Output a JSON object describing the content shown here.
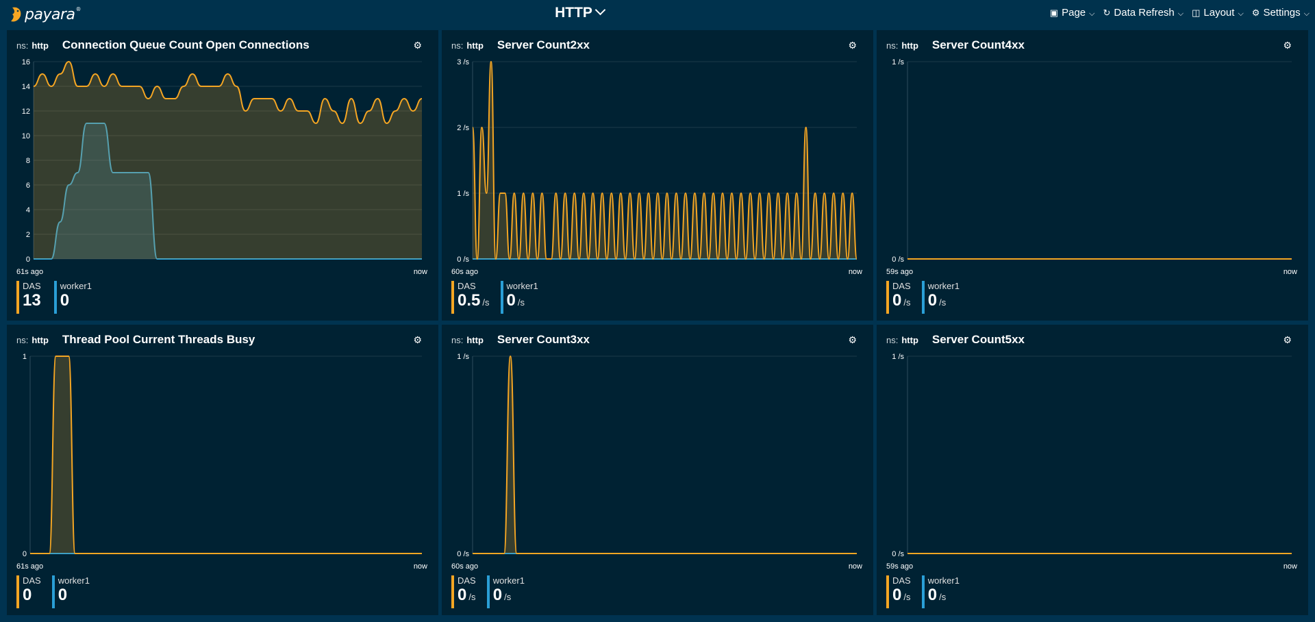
{
  "header": {
    "title": "HTTP",
    "logo_text": "payara",
    "menu": [
      {
        "icon": "page-icon",
        "glyph": "▣",
        "label": "Page"
      },
      {
        "icon": "refresh-icon",
        "glyph": "↻",
        "label": "Data Refresh"
      },
      {
        "icon": "layout-icon",
        "glyph": "◫",
        "label": "Layout"
      },
      {
        "icon": "gear-icon",
        "glyph": "⚙",
        "label": "Settings"
      }
    ]
  },
  "colors": {
    "das": "#f5a623",
    "worker1": "#2a9fd6"
  },
  "widgets": [
    {
      "ns_label": "ns:",
      "ns": "http",
      "title": "Connection Queue Count Open Connections",
      "x_start": "61s ago",
      "x_end": "now",
      "legend": [
        {
          "name": "DAS",
          "value": "13",
          "unit": ""
        },
        {
          "name": "worker1",
          "value": "0",
          "unit": ""
        }
      ]
    },
    {
      "ns_label": "ns:",
      "ns": "http",
      "title": "Server Count2xx",
      "x_start": "60s ago",
      "x_end": "now",
      "legend": [
        {
          "name": "DAS",
          "value": "0.5",
          "unit": "/s"
        },
        {
          "name": "worker1",
          "value": "0",
          "unit": "/s"
        }
      ]
    },
    {
      "ns_label": "ns:",
      "ns": "http",
      "title": "Server Count4xx",
      "x_start": "59s ago",
      "x_end": "now",
      "legend": [
        {
          "name": "DAS",
          "value": "0",
          "unit": "/s"
        },
        {
          "name": "worker1",
          "value": "0",
          "unit": "/s"
        }
      ]
    },
    {
      "ns_label": "ns:",
      "ns": "http",
      "title": "Thread Pool Current Threads Busy",
      "x_start": "61s ago",
      "x_end": "now",
      "legend": [
        {
          "name": "DAS",
          "value": "0",
          "unit": ""
        },
        {
          "name": "worker1",
          "value": "0",
          "unit": ""
        }
      ]
    },
    {
      "ns_label": "ns:",
      "ns": "http",
      "title": "Server Count3xx",
      "x_start": "60s ago",
      "x_end": "now",
      "legend": [
        {
          "name": "DAS",
          "value": "0",
          "unit": "/s"
        },
        {
          "name": "worker1",
          "value": "0",
          "unit": "/s"
        }
      ]
    },
    {
      "ns_label": "ns:",
      "ns": "http",
      "title": "Server Count5xx",
      "x_start": "59s ago",
      "x_end": "now",
      "legend": [
        {
          "name": "DAS",
          "value": "0",
          "unit": "/s"
        },
        {
          "name": "worker1",
          "value": "0",
          "unit": "/s"
        }
      ]
    }
  ],
  "chart_data": [
    {
      "type": "area",
      "yticks": [
        "0",
        "2",
        "4",
        "6",
        "8",
        "10",
        "12",
        "14",
        "16"
      ],
      "ylim": [
        0,
        16
      ],
      "grid": true,
      "series": [
        {
          "name": "DAS",
          "values": [
            14,
            15,
            14,
            15,
            16,
            14,
            14,
            15,
            14,
            15,
            14,
            14,
            14,
            13,
            14,
            13,
            13,
            14,
            15,
            14,
            14,
            14,
            15,
            14,
            12,
            13,
            13,
            13,
            12,
            13,
            12,
            12,
            11,
            13,
            12,
            11,
            13,
            11,
            12,
            13,
            11,
            12,
            13,
            12,
            13
          ]
        },
        {
          "name": "worker1",
          "values": [
            0,
            0,
            0,
            3,
            6,
            7,
            11,
            11,
            11,
            7,
            7,
            7,
            7,
            7,
            0,
            0,
            0,
            0,
            0,
            0,
            0,
            0,
            0,
            0,
            0,
            0,
            0,
            0,
            0,
            0,
            0,
            0,
            0,
            0,
            0,
            0,
            0,
            0,
            0,
            0,
            0,
            0,
            0,
            0,
            0
          ]
        }
      ]
    },
    {
      "type": "area",
      "yticks": [
        "0 /s",
        "1 /s",
        "2 /s",
        "3 /s"
      ],
      "ylim": [
        0,
        3
      ],
      "grid": true,
      "series": [
        {
          "name": "DAS",
          "values": [
            2,
            0,
            2,
            1,
            3,
            0,
            1,
            1,
            0,
            1,
            0,
            1,
            0,
            1,
            0,
            1,
            0,
            0,
            1,
            0,
            1,
            0,
            1,
            0,
            1,
            0,
            1,
            0,
            1,
            0,
            1,
            0,
            1,
            0,
            1,
            0,
            1,
            0,
            1,
            0,
            1,
            0,
            1,
            0,
            1,
            0,
            1,
            0,
            1,
            0,
            1,
            0,
            1,
            0,
            1,
            0,
            1,
            0,
            1,
            0,
            1,
            0,
            1,
            0,
            1,
            0,
            1,
            0,
            1,
            0,
            1,
            0,
            2,
            0,
            1,
            0,
            1,
            0,
            1,
            0,
            1,
            0,
            1,
            0
          ]
        },
        {
          "name": "worker1",
          "values": [
            0,
            0
          ]
        }
      ]
    },
    {
      "type": "area",
      "yticks": [
        "0 /s",
        "1 /s"
      ],
      "ylim": [
        0,
        1
      ],
      "grid": true,
      "series": [
        {
          "name": "DAS",
          "values": [
            0,
            0,
            0,
            0
          ]
        },
        {
          "name": "worker1",
          "values": [
            0,
            0,
            0,
            0
          ]
        }
      ]
    },
    {
      "type": "area",
      "yticks": [
        "0",
        "1"
      ],
      "ylim": [
        0,
        1
      ],
      "grid": true,
      "series": [
        {
          "name": "DAS",
          "values": [
            0,
            0,
            0,
            0,
            1,
            1,
            1,
            0,
            0,
            0,
            0,
            0,
            0,
            0,
            0,
            0,
            0,
            0,
            0,
            0,
            0,
            0,
            0,
            0,
            0,
            0,
            0,
            0,
            0,
            0,
            0,
            0,
            0,
            0,
            0,
            0,
            0,
            0,
            0,
            0,
            0,
            0,
            0,
            0,
            0,
            0,
            0,
            0,
            0,
            0,
            0,
            0,
            0,
            0,
            0,
            0,
            0,
            0,
            0,
            0,
            0,
            0
          ]
        },
        {
          "name": "worker1",
          "values": [
            0,
            0
          ]
        }
      ]
    },
    {
      "type": "area",
      "yticks": [
        "0 /s",
        "1 /s"
      ],
      "ylim": [
        0,
        1
      ],
      "grid": true,
      "series": [
        {
          "name": "DAS",
          "values": [
            0,
            0,
            0,
            0,
            0,
            0,
            1,
            0,
            0,
            0,
            0,
            0,
            0,
            0,
            0,
            0,
            0,
            0,
            0,
            0,
            0,
            0,
            0,
            0,
            0,
            0,
            0,
            0,
            0,
            0,
            0,
            0,
            0,
            0,
            0,
            0,
            0,
            0,
            0,
            0,
            0,
            0,
            0,
            0,
            0,
            0,
            0,
            0,
            0,
            0,
            0,
            0,
            0,
            0,
            0,
            0,
            0,
            0,
            0,
            0,
            0,
            0
          ]
        },
        {
          "name": "worker1",
          "values": [
            0,
            0
          ]
        }
      ]
    },
    {
      "type": "area",
      "yticks": [
        "0 /s",
        "1 /s"
      ],
      "ylim": [
        0,
        1
      ],
      "grid": true,
      "series": [
        {
          "name": "DAS",
          "values": [
            0,
            0,
            0,
            0
          ]
        },
        {
          "name": "worker1",
          "values": [
            0,
            0,
            0,
            0
          ]
        }
      ]
    }
  ]
}
